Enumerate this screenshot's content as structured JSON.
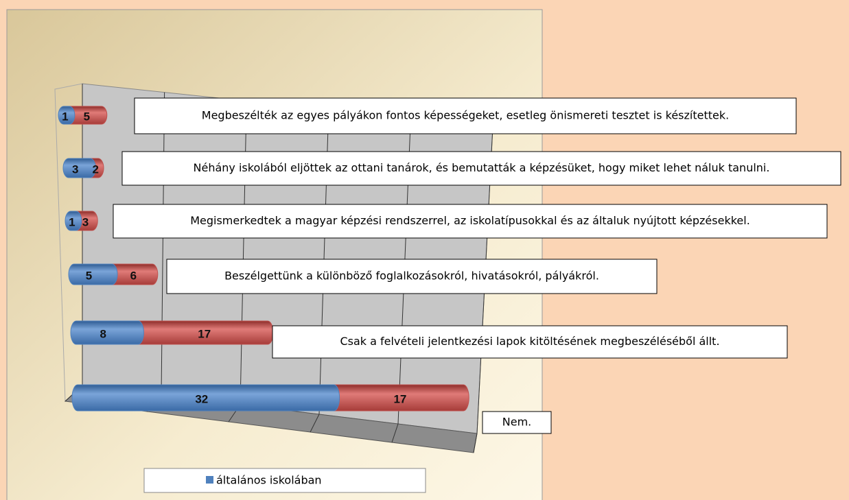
{
  "chart_data": {
    "type": "bar3d_stacked_horizontal",
    "categories": [
      "Megbeszélték az egyes pályákon fontos képességeket, esetleg önismereti tesztet is készítettek.",
      "Néhány iskolából eljöttek az ottani tanárok, és bemutatták a képzésüket, hogy miket lehet náluk tanulni.",
      "Megismerkedtek a magyar képzési rendszerrel, az iskolatípusokkal és az általuk nyújtott képzésekkel.",
      "Beszélgettünk a különböző foglalkozásokról, hivatásokról, pályákról.",
      "Csak a felvételi jelentkezési lapok kitöltésének megbeszéléséből állt.",
      "Nem."
    ],
    "series": [
      {
        "name": "általános iskolában",
        "color": "#4f81bd",
        "values": [
          1,
          3,
          1,
          5,
          8,
          32
        ]
      },
      {
        "color": "#c0504d",
        "values": [
          5,
          2,
          3,
          6,
          17,
          17
        ]
      }
    ],
    "xlim": [
      0,
      50
    ],
    "xticks": [
      0,
      10,
      20,
      30,
      40,
      50
    ],
    "grid": true,
    "legend": "bottom"
  }
}
